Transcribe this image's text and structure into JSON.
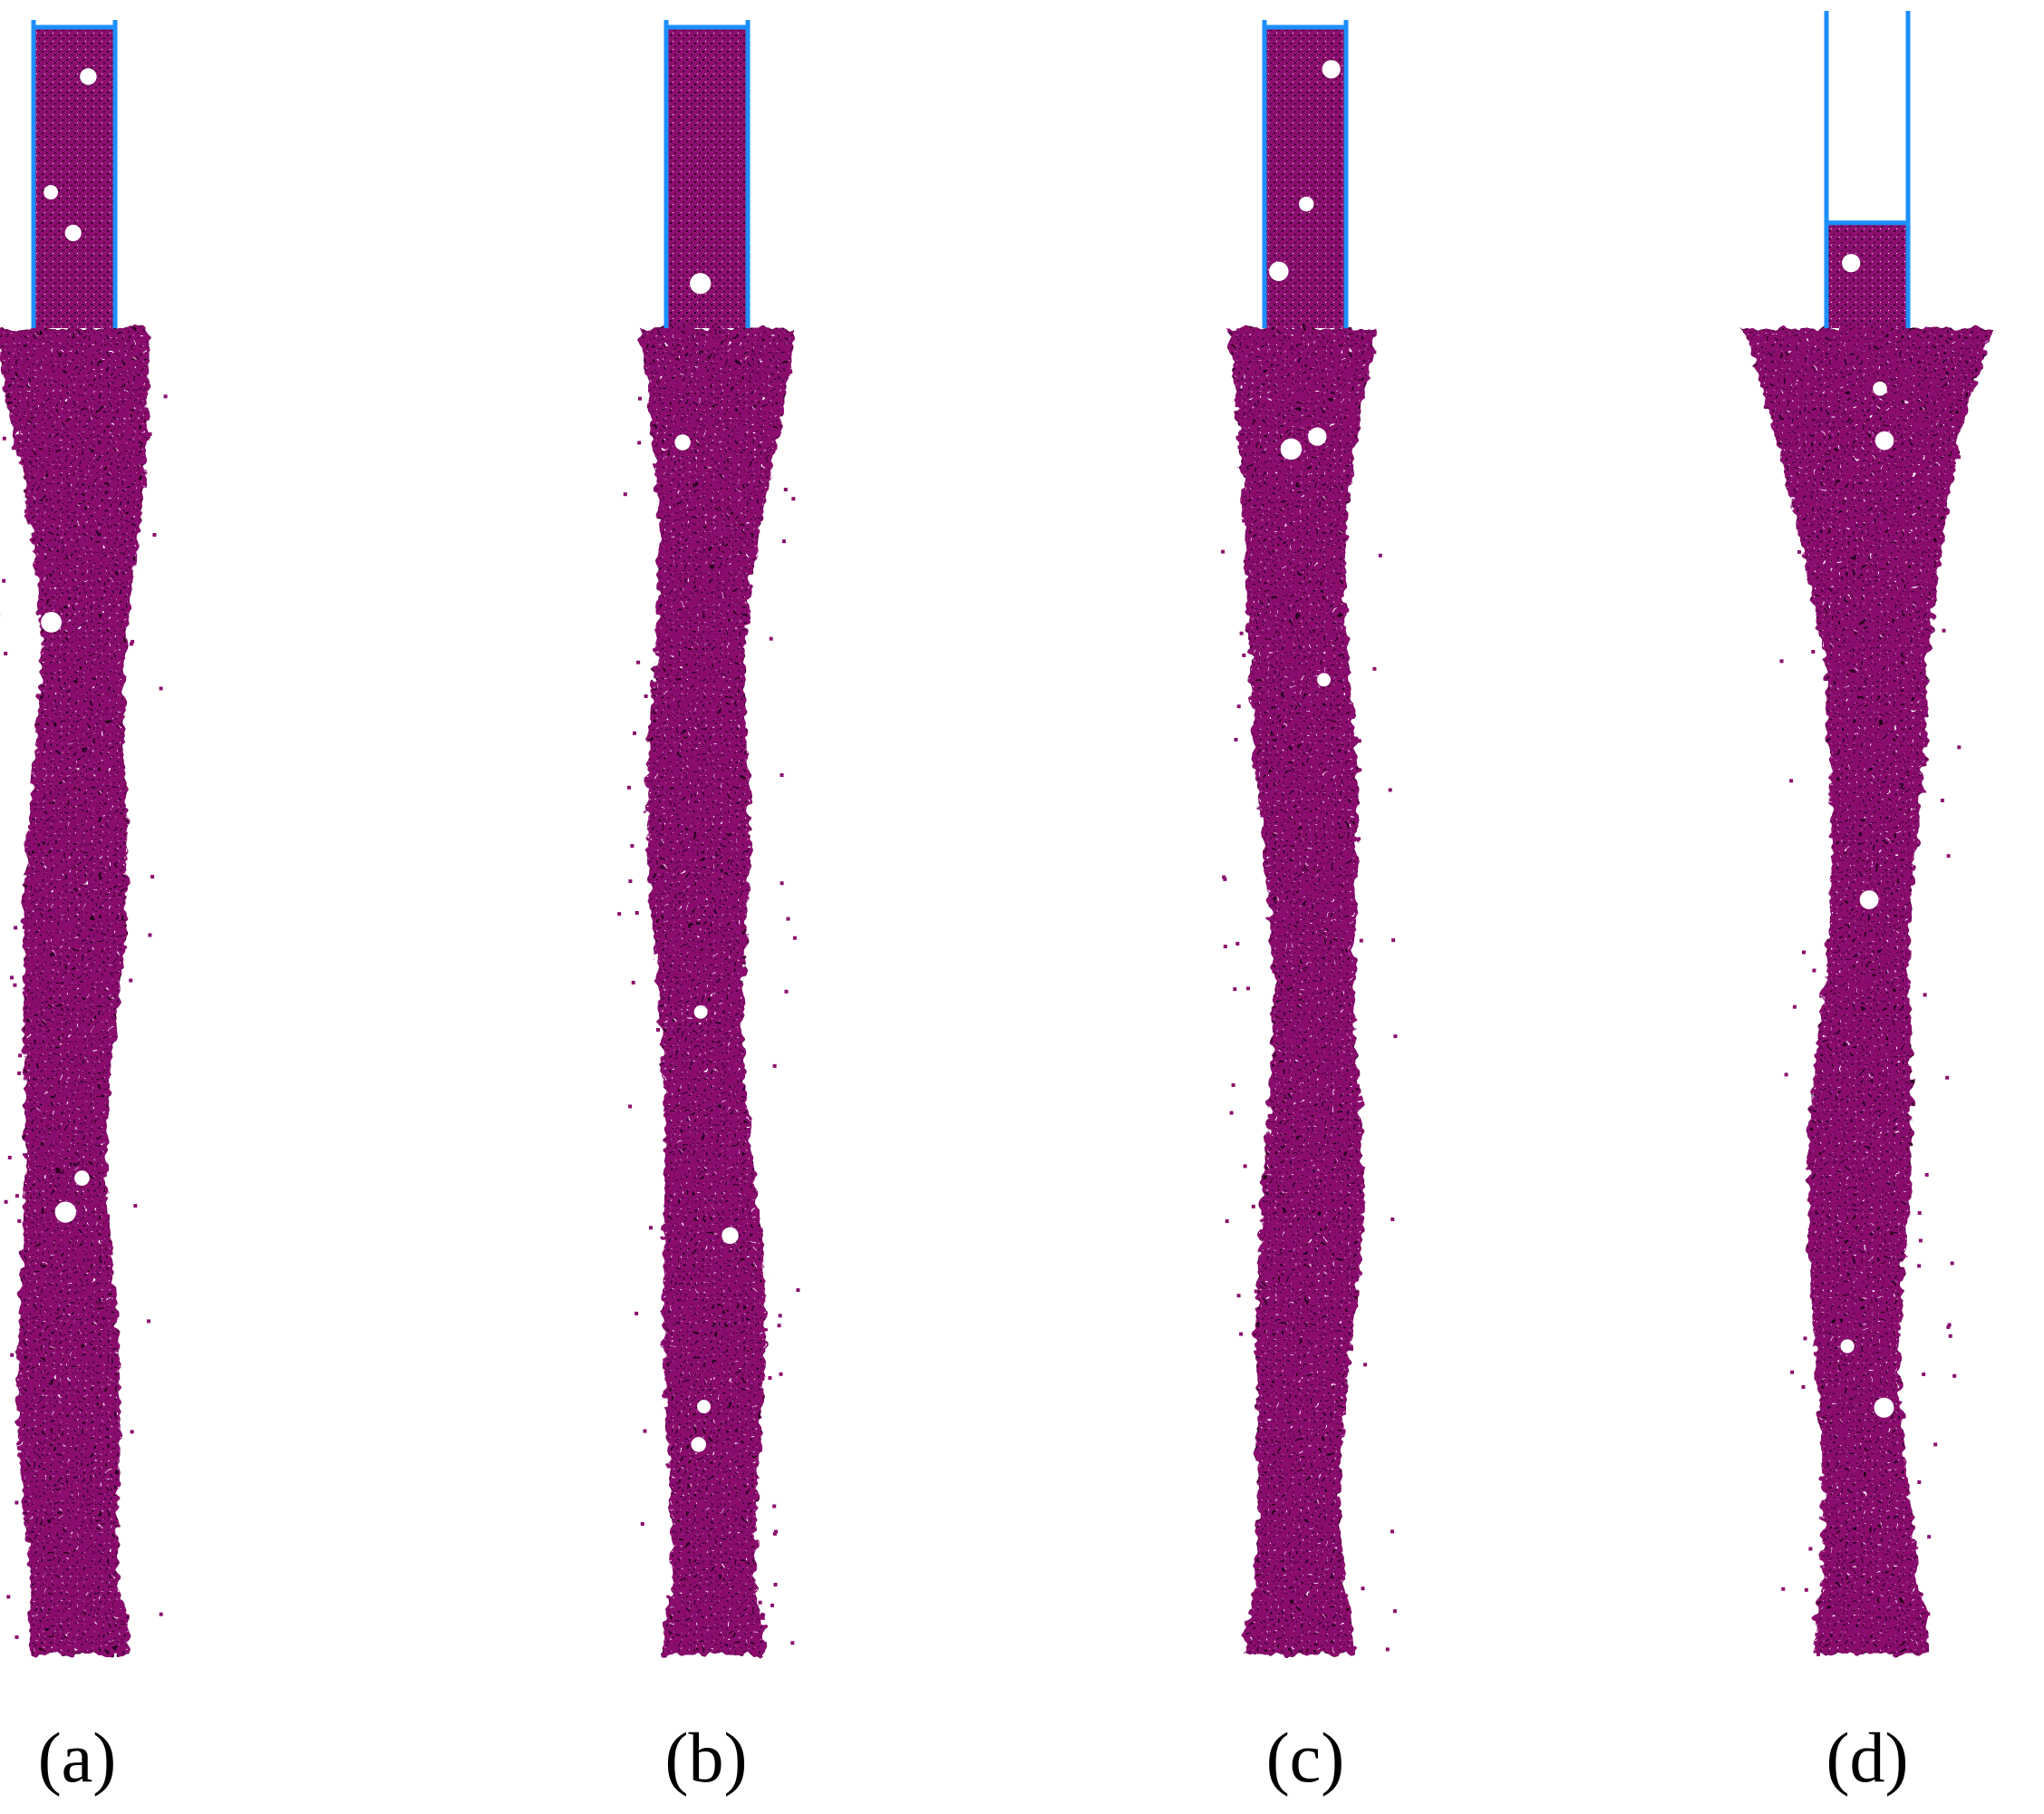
{
  "figure": {
    "panels": [
      {
        "label": "(a)",
        "fill_fraction": 1.0
      },
      {
        "label": "(b)",
        "fill_fraction": 1.0
      },
      {
        "label": "(c)",
        "fill_fraction": 1.0
      },
      {
        "label": "(d)",
        "fill_fraction": 0.35
      }
    ],
    "colors": {
      "material": "#8a0f6e",
      "material_dark": "#2a0320",
      "container": "#1e8fff",
      "background": "#ffffff"
    }
  }
}
